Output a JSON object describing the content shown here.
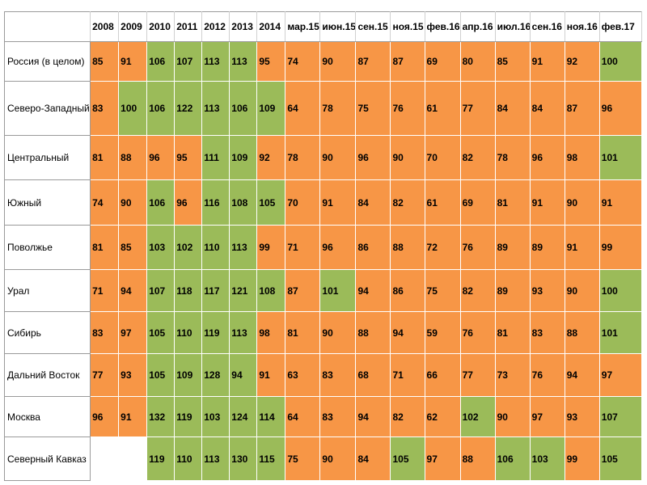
{
  "colors": {
    "orange": "#f79646",
    "green": "#9bbb59"
  },
  "columns": [
    "2008",
    "2009",
    "2010",
    "2011",
    "2012",
    "2013",
    "2014",
    "мар.15",
    "июн.15",
    "сен.15",
    "ноя.15",
    "фев.16",
    "апр.16",
    "июл.16",
    "сен.16",
    "ноя.16",
    "фев.17"
  ],
  "rows": [
    {
      "region": "Россия (в целом)",
      "values": [
        "85",
        "91",
        "106",
        "107",
        "113",
        "113",
        "95",
        "74",
        "90",
        "87",
        "87",
        "69",
        "80",
        "85",
        "91",
        "92",
        "100"
      ],
      "colors": [
        "o",
        "o",
        "g",
        "g",
        "g",
        "g",
        "o",
        "o",
        "o",
        "o",
        "o",
        "o",
        "o",
        "o",
        "o",
        "o",
        "g"
      ]
    },
    {
      "region": "Северо-Западный",
      "values": [
        "83",
        "100",
        "106",
        "122",
        "113",
        "106",
        "109",
        "64",
        "78",
        "75",
        "76",
        "61",
        "77",
        "84",
        "84",
        "87",
        "96"
      ],
      "colors": [
        "o",
        "g",
        "g",
        "g",
        "g",
        "g",
        "g",
        "o",
        "o",
        "o",
        "o",
        "o",
        "o",
        "o",
        "o",
        "o",
        "o"
      ]
    },
    {
      "region": "Центральный",
      "values": [
        "81",
        "88",
        "96",
        "95",
        "111",
        "109",
        "92",
        "78",
        "90",
        "96",
        "90",
        "70",
        "82",
        "78",
        "96",
        "98",
        "101"
      ],
      "colors": [
        "o",
        "o",
        "o",
        "o",
        "g",
        "g",
        "o",
        "o",
        "o",
        "o",
        "o",
        "o",
        "o",
        "o",
        "o",
        "o",
        "g"
      ]
    },
    {
      "region": "Южный",
      "values": [
        "74",
        "90",
        "106",
        "96",
        "116",
        "108",
        "105",
        "70",
        "91",
        "84",
        "82",
        "61",
        "69",
        "81",
        "91",
        "90",
        "91"
      ],
      "colors": [
        "o",
        "o",
        "g",
        "o",
        "g",
        "g",
        "g",
        "o",
        "o",
        "o",
        "o",
        "o",
        "o",
        "o",
        "o",
        "o",
        "o"
      ]
    },
    {
      "region": "Поволжье",
      "values": [
        "81",
        "85",
        "103",
        "102",
        "110",
        "113",
        "99",
        "71",
        "96",
        "86",
        "88",
        "72",
        "76",
        "89",
        "89",
        "91",
        "99"
      ],
      "colors": [
        "o",
        "o",
        "g",
        "g",
        "g",
        "g",
        "o",
        "o",
        "o",
        "o",
        "o",
        "o",
        "o",
        "o",
        "o",
        "o",
        "o"
      ]
    },
    {
      "region": "Урал",
      "values": [
        "71",
        "94",
        "107",
        "118",
        "117",
        "121",
        "108",
        "87",
        "101",
        "94",
        "86",
        "75",
        "82",
        "89",
        "93",
        "90",
        "100"
      ],
      "colors": [
        "o",
        "o",
        "g",
        "g",
        "g",
        "g",
        "g",
        "o",
        "g",
        "o",
        "o",
        "o",
        "o",
        "o",
        "o",
        "o",
        "g"
      ]
    },
    {
      "region": "Сибирь",
      "values": [
        "83",
        "97",
        "105",
        "110",
        "119",
        "113",
        "98",
        "81",
        "90",
        "88",
        "94",
        "59",
        "76",
        "81",
        "83",
        "88",
        "101"
      ],
      "colors": [
        "o",
        "o",
        "g",
        "g",
        "g",
        "g",
        "o",
        "o",
        "o",
        "o",
        "o",
        "o",
        "o",
        "o",
        "o",
        "o",
        "g"
      ]
    },
    {
      "region": "Дальний Восток",
      "values": [
        "77",
        "93",
        "105",
        "109",
        "128",
        "94",
        "91",
        "63",
        "83",
        "68",
        "71",
        "66",
        "77",
        "73",
        "76",
        "94",
        "97"
      ],
      "colors": [
        "o",
        "o",
        "g",
        "g",
        "g",
        "g",
        "o",
        "o",
        "o",
        "o",
        "o",
        "o",
        "o",
        "o",
        "o",
        "o",
        "o"
      ]
    },
    {
      "region": "Москва",
      "values": [
        "96",
        "91",
        "132",
        "119",
        "103",
        "124",
        "114",
        "64",
        "83",
        "94",
        "82",
        "62",
        "102",
        "90",
        "97",
        "93",
        "107"
      ],
      "colors": [
        "o",
        "o",
        "g",
        "g",
        "g",
        "g",
        "g",
        "o",
        "o",
        "o",
        "o",
        "o",
        "g",
        "o",
        "o",
        "o",
        "g"
      ]
    },
    {
      "region": "Северный Кавказ",
      "values": [
        "",
        "",
        "119",
        "110",
        "113",
        "130",
        "115",
        "75",
        "90",
        "84",
        "105",
        "97",
        "88",
        "106",
        "103",
        "99",
        "105"
      ],
      "colors": [
        "e",
        "e",
        "g",
        "g",
        "g",
        "g",
        "g",
        "o",
        "o",
        "o",
        "g",
        "o",
        "o",
        "g",
        "g",
        "o",
        "g"
      ]
    }
  ]
}
